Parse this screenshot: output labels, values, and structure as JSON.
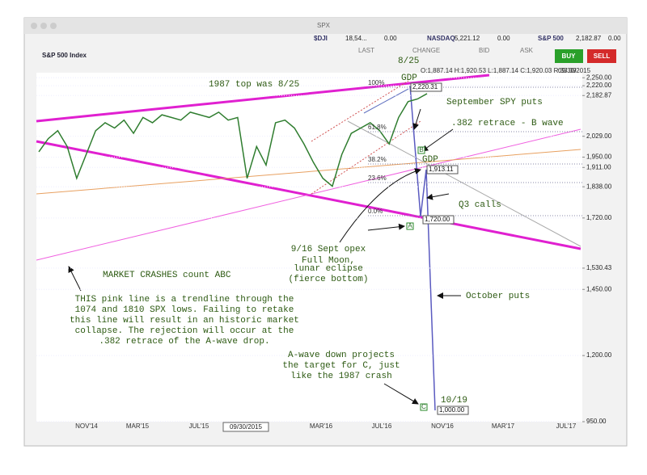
{
  "window": {
    "title": "SPX"
  },
  "ticker": [
    {
      "symbol": "$DJI",
      "price": "18,54...",
      "change": "0.00"
    },
    {
      "symbol": "NASDAQ",
      "price": "5,221.12",
      "change": "0.00"
    },
    {
      "symbol": "S&P 500",
      "price": "2,182.87",
      "change": "0.00"
    }
  ],
  "quote": {
    "name": "S&P 500 Index",
    "columns": [
      "LAST",
      "CHANGE",
      "BID",
      "ASK"
    ],
    "buy": "BUY",
    "sell": "SELL"
  },
  "chart_data": {
    "type": "line",
    "info": "O:1,887.14 H:1,920.53 L:1,887.14 C:1,920.03 R:33.39",
    "date": "09/30/2015",
    "ylim": [
      950,
      2260
    ],
    "yticks": [
      {
        "value": 2250,
        "label": "2,250.00"
      },
      {
        "value": 2220,
        "label": "2,220.00"
      },
      {
        "value": 2182.87,
        "label": "2,182.87"
      },
      {
        "value": 2029,
        "label": "2,029.00"
      },
      {
        "value": 1950,
        "label": "1,950.00"
      },
      {
        "value": 1911,
        "label": "1,911.00"
      },
      {
        "value": 1838,
        "label": "1,838.00"
      },
      {
        "value": 1720,
        "label": "1,720.00"
      },
      {
        "value": 1530.43,
        "label": "1,530.43"
      },
      {
        "value": 1450,
        "label": "1,450.00"
      },
      {
        "value": 1200,
        "label": "1,200.00"
      },
      {
        "value": 950,
        "label": "950.00"
      }
    ],
    "xlabels": [
      "NOV'14",
      "MAR'15",
      "JUL'15",
      "MAR'16",
      "JUL'16",
      "NOV'16",
      "MAR'17",
      "JUL'17"
    ],
    "series": [
      {
        "name": "S&P 500",
        "color": "#2f7d2f",
        "values": [
          1970,
          2020,
          2050,
          1990,
          1870,
          1960,
          2050,
          2080,
          2060,
          2090,
          2040,
          2100,
          2080,
          2110,
          2100,
          2090,
          2120,
          2110,
          2100,
          2120,
          2090,
          2100,
          1870,
          1990,
          1920,
          2080,
          2090,
          2060,
          2000,
          1930,
          1870,
          1840,
          1960,
          2040,
          2060,
          2080,
          2050,
          2000,
          2100,
          2160,
          2170,
          2190
        ]
      }
    ],
    "fib": [
      "100%",
      "61.8%",
      "38.2%",
      "23.6%",
      "0.0%"
    ],
    "levels": [
      "2,220.31",
      "1,913.11",
      "1,720.00",
      "1,000.00"
    ],
    "waves": [
      "A",
      "B",
      "C"
    ],
    "annotations": [
      "1987 top was 8/25",
      "GDP",
      "8/25",
      "September SPY puts",
      ".382 retrace - B wave",
      "GDP",
      "Q3 calls",
      "9/16 Sept opex",
      "Full Moon,",
      "lunar eclipse",
      "(fierce bottom)",
      "October puts",
      "MARKET CRASHES count ABC",
      "THIS pink line is a trendline through the",
      "1074 and 1810 SPX lows. Failing to retake",
      "this line will result in an historic market",
      "collapse. The rejection will occur at the",
      ".382 retrace of the A-wave drop.",
      "A-wave down projects",
      "the target for C, just",
      "like the 1987 crash",
      "10/19"
    ]
  }
}
